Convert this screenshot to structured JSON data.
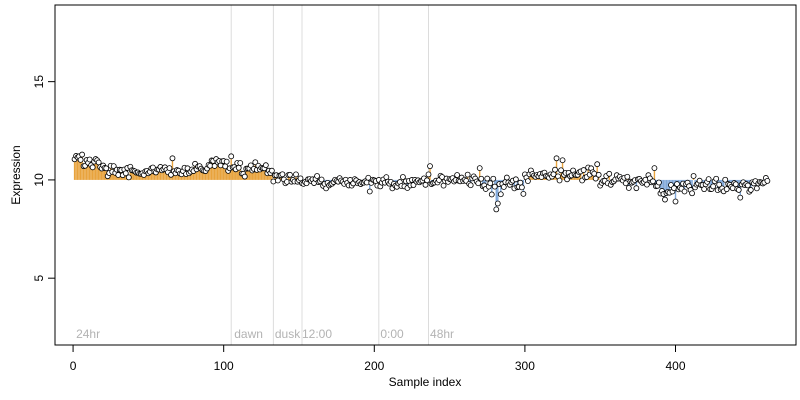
{
  "chart_data": {
    "type": "scatter",
    "title": "",
    "xlabel": "Sample index",
    "ylabel": "Expression",
    "xlim": [
      -12,
      480
    ],
    "ylim": [
      1.6,
      18.9
    ],
    "x_ticks": [
      0,
      100,
      200,
      300,
      400
    ],
    "y_ticks": [
      5,
      10,
      15
    ],
    "baseline": 10,
    "grid": false,
    "legend": "none",
    "colors": {
      "above": "#e8a33d",
      "below": "#7fa7d9",
      "point_fill": "#ffffff",
      "point_stroke": "#000000",
      "divider": "#dcdcdc",
      "group_label": "#b3b3b3"
    },
    "group_dividers": [
      105,
      133,
      152,
      203,
      236
    ],
    "group_labels": [
      {
        "x": 2,
        "label": "24hr"
      },
      {
        "x": 107,
        "label": "dawn"
      },
      {
        "x": 134,
        "label": "dusk"
      },
      {
        "x": 152,
        "label": "12:00"
      },
      {
        "x": 204,
        "label": "0:00"
      },
      {
        "x": 237,
        "label": "48hr"
      }
    ],
    "trend_segments": [
      {
        "x0": 1,
        "x1": 14,
        "y0": 11.1,
        "y1": 10.8,
        "noise": 0.22
      },
      {
        "x0": 14,
        "x1": 30,
        "y0": 10.8,
        "y1": 10.4,
        "noise": 0.2
      },
      {
        "x0": 30,
        "x1": 65,
        "y0": 10.4,
        "y1": 10.45,
        "noise": 0.2
      },
      {
        "x0": 65,
        "x1": 90,
        "y0": 10.4,
        "y1": 10.6,
        "noise": 0.2
      },
      {
        "x0": 90,
        "x1": 104,
        "y0": 10.9,
        "y1": 10.7,
        "noise": 0.22
      },
      {
        "x0": 105,
        "x1": 132,
        "y0": 10.5,
        "y1": 10.6,
        "noise": 0.25
      },
      {
        "x0": 133,
        "x1": 151,
        "y0": 10.2,
        "y1": 10.0,
        "noise": 0.2
      },
      {
        "x0": 152,
        "x1": 202,
        "y0": 10.0,
        "y1": 9.8,
        "noise": 0.22
      },
      {
        "x0": 203,
        "x1": 235,
        "y0": 9.8,
        "y1": 9.9,
        "noise": 0.22
      },
      {
        "x0": 236,
        "x1": 270,
        "y0": 10.0,
        "y1": 10.0,
        "noise": 0.25
      },
      {
        "x0": 270,
        "x1": 300,
        "y0": 9.8,
        "y1": 9.7,
        "noise": 0.3
      },
      {
        "x0": 300,
        "x1": 350,
        "y0": 10.2,
        "y1": 10.3,
        "noise": 0.22
      },
      {
        "x0": 350,
        "x1": 390,
        "y0": 10.0,
        "y1": 9.9,
        "noise": 0.22
      },
      {
        "x0": 390,
        "x1": 430,
        "y0": 9.5,
        "y1": 9.7,
        "noise": 0.22
      },
      {
        "x0": 430,
        "x1": 461,
        "y0": 9.6,
        "y1": 9.8,
        "noise": 0.22
      }
    ],
    "notable_points": [
      {
        "x": 66,
        "y": 11.1
      },
      {
        "x": 105,
        "y": 11.2
      },
      {
        "x": 237,
        "y": 10.7
      },
      {
        "x": 270,
        "y": 10.6
      },
      {
        "x": 281,
        "y": 8.5
      },
      {
        "x": 282,
        "y": 8.8
      },
      {
        "x": 321,
        "y": 11.1
      },
      {
        "x": 325,
        "y": 11.0
      },
      {
        "x": 348,
        "y": 10.8
      },
      {
        "x": 386,
        "y": 10.6
      },
      {
        "x": 393,
        "y": 9.0
      },
      {
        "x": 400,
        "y": 8.9
      },
      {
        "x": 412,
        "y": 10.2
      },
      {
        "x": 443,
        "y": 9.1
      },
      {
        "x": 460,
        "y": 10.1
      }
    ]
  }
}
